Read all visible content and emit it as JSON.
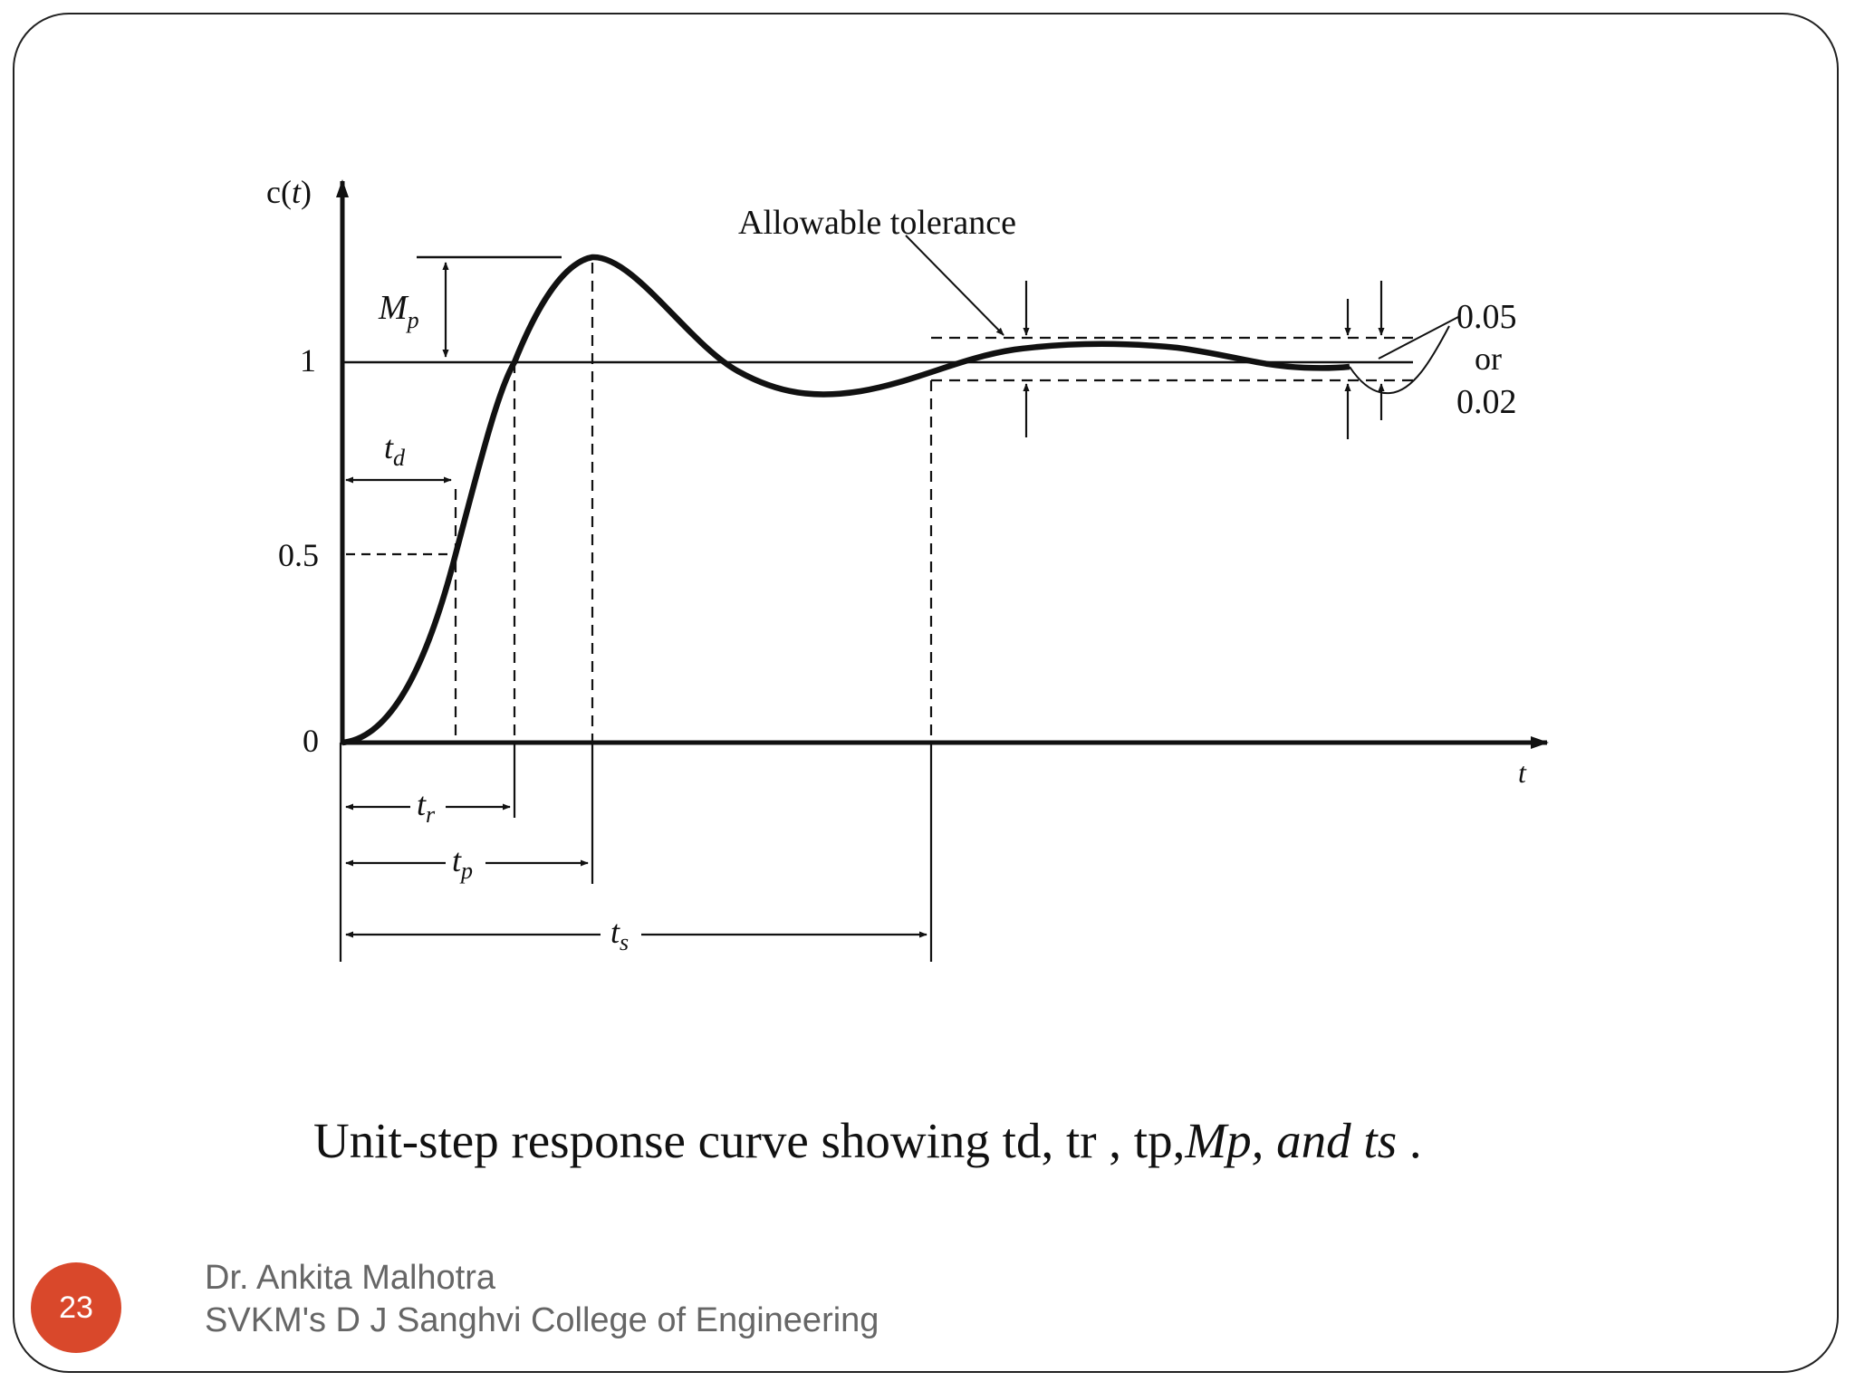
{
  "figure": {
    "y_axis_label": {
      "c": "c(",
      "t": "t",
      "close": ")"
    },
    "x_axis_label": "t",
    "y_ticks": [
      "1",
      "0.5",
      "0"
    ],
    "annotation_tolerance": "Allowable tolerance",
    "tolerance_values": [
      "0.05",
      "or",
      "0.02"
    ],
    "markers": {
      "Mp": {
        "main": "M",
        "sub": "p"
      },
      "td": {
        "main": "t",
        "sub": "d"
      },
      "tr": {
        "main": "t",
        "sub": "r"
      },
      "tp": {
        "main": "t",
        "sub": "p"
      },
      "ts": {
        "main": "t",
        "sub": "s"
      }
    }
  },
  "caption": {
    "plain": "Unit-step response curve showing td, tr , tp,",
    "italic": "Mp, and ts",
    "end": " ."
  },
  "footer": {
    "slide_number": "23",
    "author": "Dr. Ankita Malhotra",
    "college": "SVKM's D J Sanghvi College of Engineering"
  }
}
